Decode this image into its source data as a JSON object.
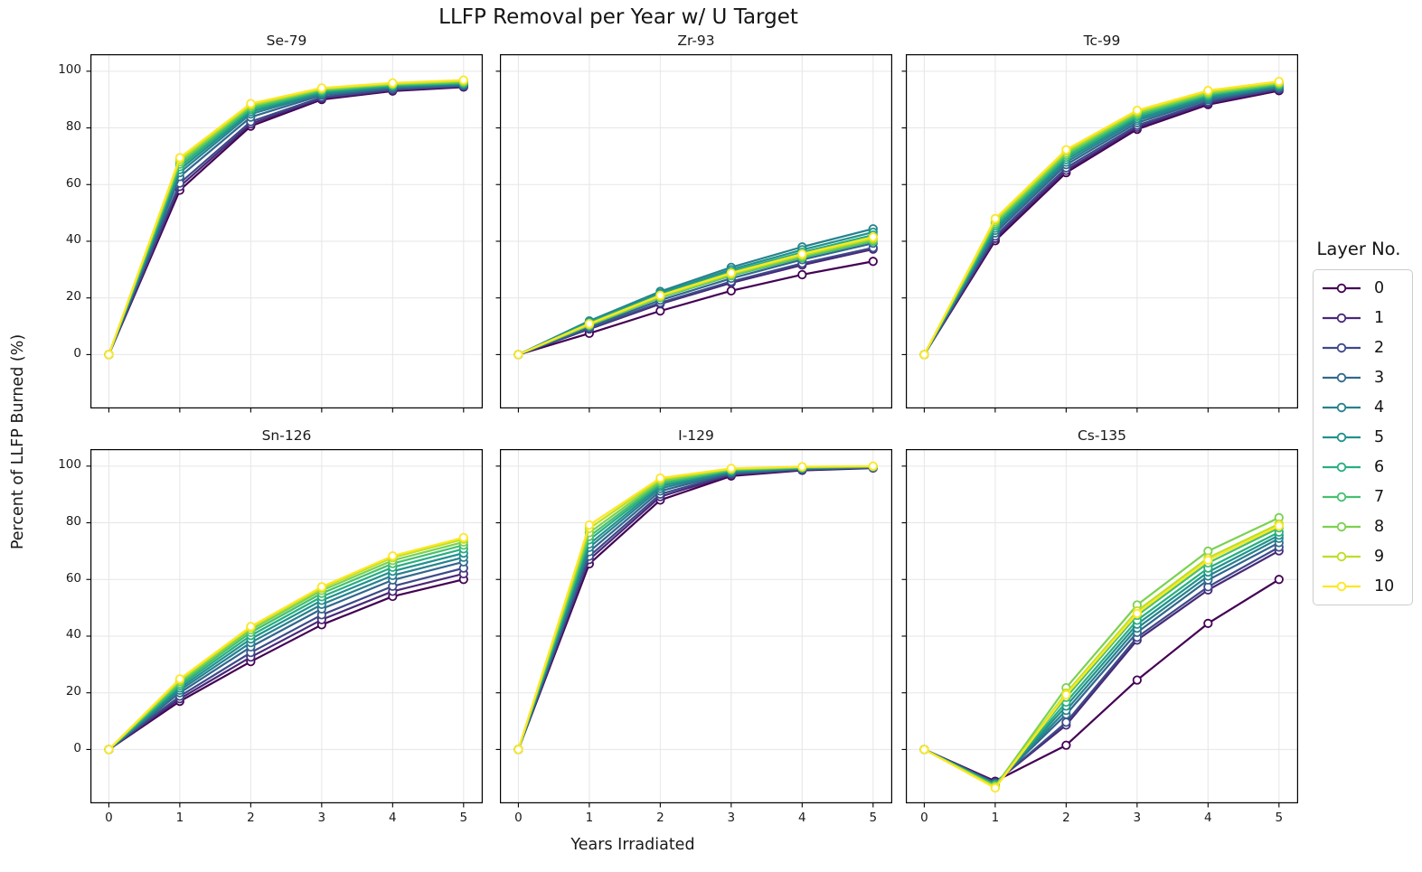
{
  "title": "LLFP Removal per Year w/ U Target",
  "xlabel": "Years Irradiated",
  "ylabel": "Percent of LLFP Burned (%)",
  "legend": {
    "title": "Layer No.",
    "entries": [
      {
        "label": "0",
        "color": "#440154"
      },
      {
        "label": "1",
        "color": "#482878"
      },
      {
        "label": "2",
        "color": "#3e4989"
      },
      {
        "label": "3",
        "color": "#31688e"
      },
      {
        "label": "4",
        "color": "#26828e"
      },
      {
        "label": "5",
        "color": "#21918c"
      },
      {
        "label": "6",
        "color": "#28ae80"
      },
      {
        "label": "7",
        "color": "#46c06f"
      },
      {
        "label": "8",
        "color": "#7ad151"
      },
      {
        "label": "9",
        "color": "#bddf26"
      },
      {
        "label": "10",
        "color": "#fde725"
      }
    ]
  },
  "axes": {
    "x_ticks": [
      0,
      1,
      2,
      3,
      4,
      5
    ],
    "y_ticks": [
      0,
      20,
      40,
      60,
      80,
      100
    ],
    "xlim": [
      -0.26,
      5.27
    ],
    "ylim": [
      -19,
      106
    ],
    "grid": true,
    "grid_color": "#e6e6e6",
    "spine_color": "#000000"
  },
  "chart_data": [
    {
      "type": "line",
      "title": "Se-79",
      "x": [
        0,
        1,
        2,
        3,
        4,
        5
      ],
      "series": [
        {
          "name": "0",
          "values": [
            0,
            58.0,
            80.6,
            90.0,
            93.0,
            94.4
          ]
        },
        {
          "name": "1",
          "values": [
            0,
            59.3,
            81.4,
            90.4,
            93.3,
            94.6
          ]
        },
        {
          "name": "2",
          "values": [
            0,
            60.5,
            82.2,
            90.8,
            93.6,
            94.8
          ]
        },
        {
          "name": "3",
          "values": [
            0,
            62.8,
            83.8,
            91.5,
            94.0,
            95.1
          ]
        },
        {
          "name": "4",
          "values": [
            0,
            64.2,
            84.9,
            92.0,
            94.4,
            95.4
          ]
        },
        {
          "name": "5",
          "values": [
            0,
            65.3,
            85.7,
            92.4,
            94.7,
            95.6
          ]
        },
        {
          "name": "6",
          "values": [
            0,
            66.3,
            86.4,
            92.8,
            94.9,
            95.8
          ]
        },
        {
          "name": "7",
          "values": [
            0,
            67.2,
            87.0,
            93.2,
            95.2,
            96.0
          ]
        },
        {
          "name": "8",
          "values": [
            0,
            68.0,
            87.6,
            93.5,
            95.4,
            96.3
          ]
        },
        {
          "name": "9",
          "values": [
            0,
            68.8,
            88.1,
            93.8,
            95.6,
            96.6
          ]
        },
        {
          "name": "10",
          "values": [
            0,
            69.5,
            88.6,
            94.1,
            95.9,
            96.9
          ]
        }
      ]
    },
    {
      "type": "line",
      "title": "Zr-93",
      "x": [
        0,
        1,
        2,
        3,
        4,
        5
      ],
      "series": [
        {
          "name": "0",
          "values": [
            0,
            7.5,
            15.4,
            22.5,
            28.2,
            32.9
          ]
        },
        {
          "name": "1",
          "values": [
            0,
            9.0,
            17.9,
            25.3,
            31.6,
            37.2
          ]
        },
        {
          "name": "2",
          "values": [
            0,
            9.2,
            18.3,
            25.8,
            32.2,
            37.7
          ]
        },
        {
          "name": "3",
          "values": [
            0,
            9.7,
            19.2,
            26.9,
            33.5,
            39.3
          ]
        },
        {
          "name": "4",
          "values": [
            0,
            11.9,
            22.3,
            30.8,
            38.0,
            44.4
          ]
        },
        {
          "name": "5",
          "values": [
            0,
            11.6,
            21.7,
            30.0,
            37.0,
            43.2
          ]
        },
        {
          "name": "6",
          "values": [
            0,
            11.3,
            21.2,
            29.3,
            36.1,
            42.2
          ]
        },
        {
          "name": "7",
          "values": [
            0,
            10.3,
            20.1,
            27.8,
            34.2,
            40.0
          ]
        },
        {
          "name": "8",
          "values": [
            0,
            10.5,
            20.3,
            28.1,
            34.7,
            40.5
          ]
        },
        {
          "name": "9",
          "values": [
            0,
            10.7,
            20.6,
            28.5,
            35.1,
            41.0
          ]
        },
        {
          "name": "10",
          "values": [
            0,
            10.9,
            20.9,
            28.8,
            35.5,
            41.5
          ]
        }
      ]
    },
    {
      "type": "line",
      "title": "Tc-99",
      "x": [
        0,
        1,
        2,
        3,
        4,
        5
      ],
      "series": [
        {
          "name": "0",
          "values": [
            0,
            40.2,
            64.2,
            79.5,
            88.2,
            93.1
          ]
        },
        {
          "name": "1",
          "values": [
            0,
            41.0,
            65.0,
            80.2,
            88.7,
            93.5
          ]
        },
        {
          "name": "2",
          "values": [
            0,
            41.8,
            65.9,
            80.9,
            89.2,
            93.8
          ]
        },
        {
          "name": "3",
          "values": [
            0,
            42.9,
            67.0,
            81.8,
            89.9,
            94.2
          ]
        },
        {
          "name": "4",
          "values": [
            0,
            43.8,
            67.9,
            82.6,
            90.4,
            94.5
          ]
        },
        {
          "name": "5",
          "values": [
            0,
            44.6,
            68.8,
            83.3,
            90.9,
            94.8
          ]
        },
        {
          "name": "6",
          "values": [
            0,
            45.4,
            69.6,
            84.0,
            91.4,
            95.1
          ]
        },
        {
          "name": "7",
          "values": [
            0,
            46.1,
            70.3,
            84.6,
            91.8,
            95.4
          ]
        },
        {
          "name": "8",
          "values": [
            0,
            46.8,
            71.0,
            85.2,
            92.2,
            95.7
          ]
        },
        {
          "name": "9",
          "values": [
            0,
            47.4,
            71.7,
            85.7,
            92.7,
            96.0
          ]
        },
        {
          "name": "10",
          "values": [
            0,
            48.0,
            72.3,
            86.2,
            93.2,
            96.4
          ]
        }
      ]
    },
    {
      "type": "line",
      "title": "Sn-126",
      "x": [
        0,
        1,
        2,
        3,
        4,
        5
      ],
      "series": [
        {
          "name": "0",
          "values": [
            0,
            17.0,
            31.0,
            44.0,
            54.0,
            60.0
          ]
        },
        {
          "name": "1",
          "values": [
            0,
            17.9,
            32.6,
            45.8,
            55.8,
            62.0
          ]
        },
        {
          "name": "2",
          "values": [
            0,
            18.8,
            34.2,
            47.5,
            57.6,
            64.0
          ]
        },
        {
          "name": "3",
          "values": [
            0,
            20.0,
            36.2,
            49.6,
            59.8,
            66.2
          ]
        },
        {
          "name": "4",
          "values": [
            0,
            20.9,
            37.7,
            51.2,
            61.4,
            67.8
          ]
        },
        {
          "name": "5",
          "values": [
            0,
            21.7,
            39.0,
            52.6,
            62.9,
            69.3
          ]
        },
        {
          "name": "6",
          "values": [
            0,
            22.5,
            40.2,
            53.9,
            64.3,
            70.8
          ]
        },
        {
          "name": "7",
          "values": [
            0,
            23.2,
            41.3,
            55.1,
            65.6,
            72.1
          ]
        },
        {
          "name": "8",
          "values": [
            0,
            23.9,
            42.2,
            56.1,
            66.7,
            73.2
          ]
        },
        {
          "name": "9",
          "values": [
            0,
            24.5,
            43.0,
            56.9,
            67.7,
            74.2
          ]
        },
        {
          "name": "10",
          "values": [
            0,
            24.9,
            43.4,
            57.4,
            68.3,
            74.8
          ]
        }
      ]
    },
    {
      "type": "line",
      "title": "I-129",
      "x": [
        0,
        1,
        2,
        3,
        4,
        5
      ],
      "series": [
        {
          "name": "0",
          "values": [
            0,
            65.5,
            88.0,
            96.5,
            98.5,
            99.3
          ]
        },
        {
          "name": "1",
          "values": [
            0,
            67.0,
            89.2,
            96.9,
            98.7,
            99.4
          ]
        },
        {
          "name": "2",
          "values": [
            0,
            68.2,
            90.1,
            97.2,
            98.8,
            99.5
          ]
        },
        {
          "name": "3",
          "values": [
            0,
            69.8,
            91.2,
            97.6,
            99.0,
            99.6
          ]
        },
        {
          "name": "4",
          "values": [
            0,
            71.3,
            92.1,
            97.9,
            99.1,
            99.6
          ]
        },
        {
          "name": "5",
          "values": [
            0,
            72.5,
            92.9,
            98.2,
            99.2,
            99.7
          ]
        },
        {
          "name": "6",
          "values": [
            0,
            74.0,
            93.5,
            98.4,
            99.4,
            99.8
          ]
        },
        {
          "name": "7",
          "values": [
            0,
            75.2,
            94.1,
            98.6,
            99.5,
            99.8
          ]
        },
        {
          "name": "8",
          "values": [
            0,
            76.5,
            94.7,
            98.8,
            99.6,
            99.9
          ]
        },
        {
          "name": "9",
          "values": [
            0,
            78.0,
            95.3,
            99.0,
            99.7,
            99.9
          ]
        },
        {
          "name": "10",
          "values": [
            0,
            79.2,
            95.8,
            99.2,
            99.8,
            100.0
          ]
        }
      ]
    },
    {
      "type": "line",
      "title": "Cs-135",
      "x": [
        0,
        1,
        2,
        3,
        4,
        5
      ],
      "series": [
        {
          "name": "0",
          "values": [
            0,
            -11.2,
            1.5,
            24.5,
            44.5,
            60.0
          ]
        },
        {
          "name": "1",
          "values": [
            0,
            -11.6,
            8.6,
            38.6,
            56.3,
            70.1
          ]
        },
        {
          "name": "2",
          "values": [
            0,
            -11.8,
            9.6,
            39.6,
            57.4,
            71.4
          ]
        },
        {
          "name": "3",
          "values": [
            0,
            -12.0,
            12.4,
            41.3,
            59.8,
            73.0
          ]
        },
        {
          "name": "4",
          "values": [
            0,
            -12.2,
            13.8,
            42.8,
            61.2,
            74.5
          ]
        },
        {
          "name": "5",
          "values": [
            0,
            -12.4,
            15.3,
            44.2,
            62.6,
            75.6
          ]
        },
        {
          "name": "6",
          "values": [
            0,
            -12.6,
            16.7,
            45.6,
            64.0,
            76.7
          ]
        },
        {
          "name": "7",
          "values": [
            0,
            -12.8,
            18.4,
            47.3,
            65.8,
            78.2
          ]
        },
        {
          "name": "8",
          "values": [
            0,
            -13.0,
            21.8,
            51.0,
            70.0,
            81.8
          ]
        },
        {
          "name": "9",
          "values": [
            0,
            -13.3,
            19.9,
            48.9,
            67.6,
            79.6
          ]
        },
        {
          "name": "10",
          "values": [
            0,
            -13.6,
            19.3,
            48.0,
            66.8,
            78.9
          ]
        }
      ]
    }
  ]
}
